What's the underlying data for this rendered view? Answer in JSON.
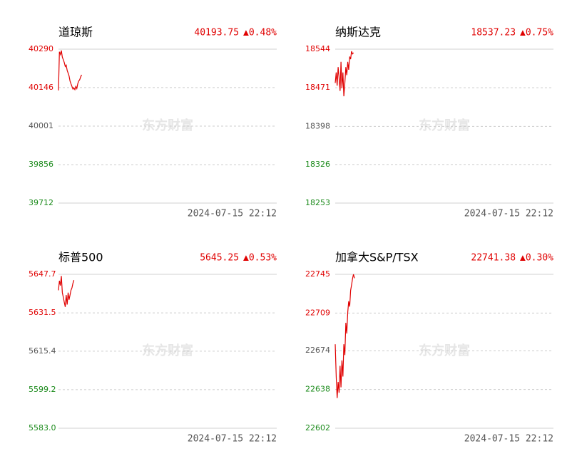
{
  "chart_data": [
    {
      "type": "line",
      "title": "道琼斯",
      "last": "40193.75",
      "change": "▲0.48%",
      "time": "2024-07-15 22:12",
      "watermark": "东方财富",
      "ylim": [
        39712,
        40290
      ],
      "yticks": [
        40290,
        40146,
        40001,
        39856,
        39712
      ],
      "values": [
        40135,
        40280,
        40270,
        40285,
        40260,
        40250,
        40240,
        40225,
        40230,
        40210,
        40200,
        40190,
        40170,
        40160,
        40150,
        40140,
        40145,
        40138,
        40150,
        40142,
        40160,
        40170,
        40175,
        40185,
        40193.75
      ],
      "color": "#e00000",
      "up_color": "#e00000",
      "down_color": "#1a8a1a",
      "flat_color": "#555555"
    },
    {
      "type": "line",
      "title": "纳斯达克",
      "last": "18537.23",
      "change": "▲0.75%",
      "time": "2024-07-15 22:12",
      "watermark": "东方财富",
      "ylim": [
        18253,
        18544
      ],
      "yticks": [
        18544,
        18471,
        18398,
        18326,
        18253
      ],
      "values": [
        18480,
        18500,
        18475,
        18510,
        18490,
        18465,
        18520,
        18470,
        18500,
        18455,
        18480,
        18510,
        18495,
        18520,
        18505,
        18530,
        18525,
        18540,
        18535,
        18537.23
      ],
      "color": "#e00000",
      "up_color": "#e00000",
      "down_color": "#1a8a1a",
      "flat_color": "#555555"
    },
    {
      "type": "line",
      "title": "标普500",
      "last": "5645.25",
      "change": "▲0.53%",
      "time": "2024-07-15 22:12",
      "watermark": "东方财富",
      "ylim": [
        5583,
        5647.7
      ],
      "yticks": [
        5647.7,
        5631.5,
        5615.4,
        5599.2,
        {
          "value": 5583,
          "label": "5583.0"
        }
      ],
      "values": [
        5641,
        5645,
        5643,
        5647,
        5640,
        5638,
        5636,
        5634,
        5639,
        5635,
        5640,
        5637,
        5639,
        5641,
        5642,
        5644,
        5645.25
      ],
      "color": "#e00000",
      "up_color": "#e00000",
      "down_color": "#1a8a1a",
      "flat_color": "#555555"
    },
    {
      "type": "line",
      "title": "加拿大S&P/TSX",
      "last": "22741.38",
      "change": "▲0.30%",
      "time": "2024-07-15 22:12",
      "watermark": "东方财富",
      "ylim": [
        22602,
        22745
      ],
      "yticks": [
        22745,
        22709,
        22674,
        22638,
        22602
      ],
      "values": [
        22680,
        22650,
        22630,
        22645,
        22635,
        22660,
        22640,
        22665,
        22650,
        22680,
        22670,
        22700,
        22690,
        22710,
        22720,
        22715,
        22730,
        22735,
        22741,
        22745,
        22741.38
      ],
      "color": "#e00000",
      "up_color": "#e00000",
      "down_color": "#1a8a1a",
      "flat_color": "#555555"
    }
  ]
}
